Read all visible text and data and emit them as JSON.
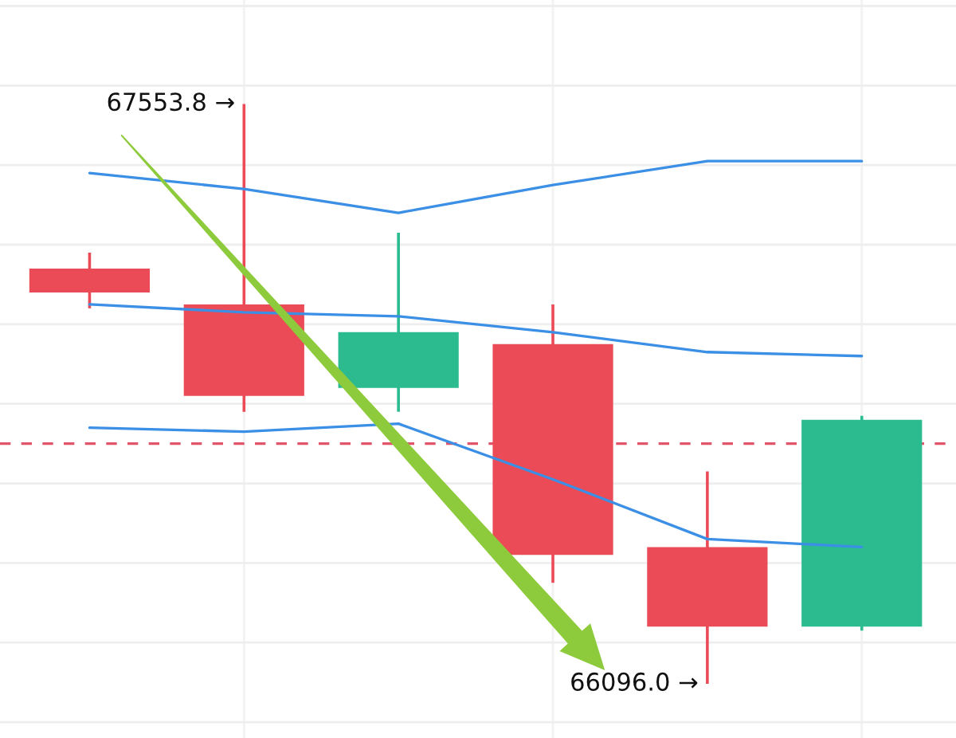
{
  "chart_data": {
    "type": "candlestick",
    "categories": [
      null,
      null,
      null,
      null,
      null,
      null
    ],
    "ohlc": [
      [
        67140,
        67180,
        67040,
        67080
      ],
      [
        67050,
        67553.8,
        66780,
        66820
      ],
      [
        66840,
        67230,
        66780,
        66980
      ],
      [
        66950,
        67050,
        66350,
        66420
      ],
      [
        66440,
        66630,
        66096.0,
        66240
      ],
      [
        66240,
        66770,
        66230,
        66760
      ]
    ],
    "colors": [
      "#eb4b57",
      "#eb4b57",
      "#2bbb8f",
      "#eb4b57",
      "#eb4b57",
      "#2bbb8f"
    ],
    "series": [
      {
        "type": "line",
        "color": "#3b8fe5",
        "values": [
          67380,
          67340,
          67280,
          67350,
          67410,
          67410
        ]
      },
      {
        "type": "line",
        "color": "#3b8fe5",
        "values": [
          67050,
          67030,
          67020,
          66980,
          66930,
          66920
        ]
      },
      {
        "type": "line",
        "color": "#3b8fe5",
        "values": [
          66740,
          66730,
          66750,
          66610,
          66460,
          66440
        ]
      }
    ],
    "ylim": [
      65960,
      67815
    ],
    "yticks": [
      {
        "value": 66000,
        "label": null
      },
      {
        "value": 66200,
        "label": null
      },
      {
        "value": 66400,
        "label": null
      },
      {
        "value": 66600,
        "label": null
      },
      {
        "value": 66800,
        "label": null
      },
      {
        "value": 67000,
        "label": null
      },
      {
        "value": 67200,
        "label": null
      },
      {
        "value": 67400,
        "label": null
      },
      {
        "value": 67600,
        "label": null
      },
      {
        "value": 67800,
        "label": null
      }
    ],
    "grid": true,
    "ref_lines": [
      {
        "axis": "y",
        "value": 66700,
        "color": "#e0556a",
        "line_style": "dashed"
      }
    ],
    "annotations": [
      "67553.8 →",
      "66096.0 →"
    ]
  }
}
